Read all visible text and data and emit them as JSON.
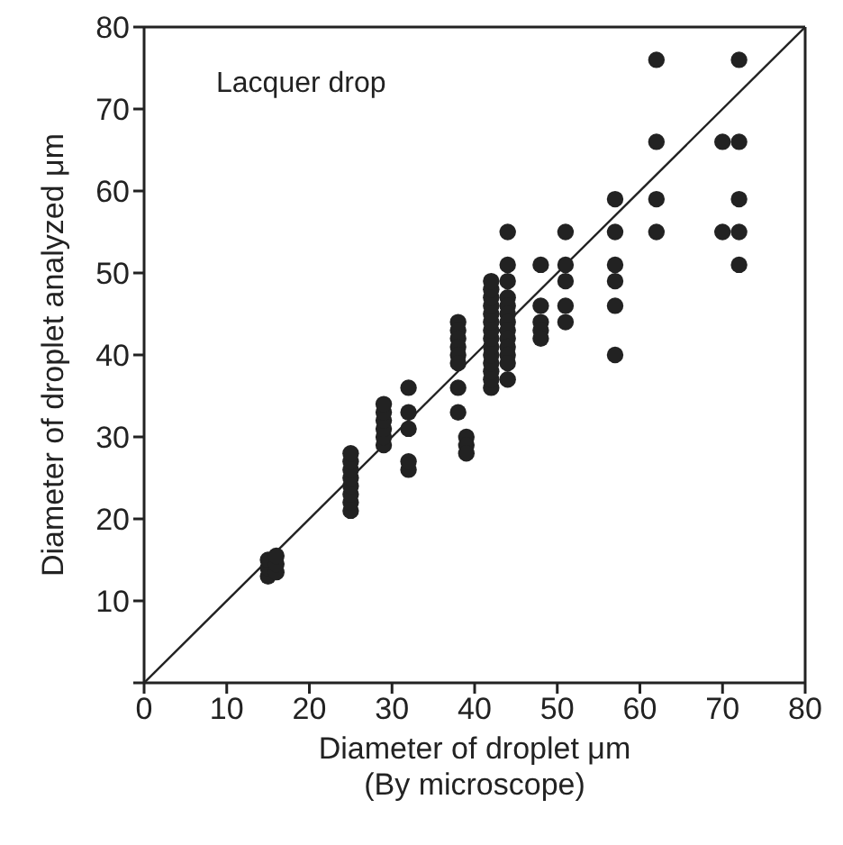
{
  "chart_data": {
    "type": "scatter",
    "xlabel": "Diameter of droplet  μm\n(By microscope)",
    "ylabel": "Diameter of droplet analyzed  μm",
    "annotations": [
      "Lacquer drop"
    ],
    "xlim": [
      0,
      80
    ],
    "ylim": [
      0,
      80
    ],
    "xticks": [
      0,
      10,
      20,
      30,
      40,
      50,
      60,
      70,
      80
    ],
    "yticks": [
      {
        "value": 0,
        "label": null
      },
      10,
      20,
      30,
      40,
      50,
      60,
      70,
      80
    ],
    "marker": "circle",
    "series": [
      {
        "color": "#222222",
        "x": [
          15,
          15,
          15,
          16,
          16,
          16,
          25,
          25,
          25,
          25,
          25,
          25,
          25,
          25,
          29,
          29,
          29,
          29,
          29,
          29,
          32,
          32,
          32,
          32,
          32,
          38,
          38,
          38,
          38,
          38,
          38,
          38,
          38,
          39,
          39,
          39,
          42,
          42,
          42,
          42,
          42,
          42,
          42,
          42,
          42,
          42,
          42,
          42,
          42,
          42,
          44,
          44,
          44,
          44,
          44,
          44,
          44,
          44,
          44,
          44,
          44,
          44,
          44,
          48,
          48,
          48,
          48,
          48,
          51,
          51,
          51,
          51,
          51,
          57,
          57,
          57,
          57,
          57,
          57,
          62,
          62,
          62,
          62,
          70,
          70,
          72,
          72,
          72,
          72,
          72
        ],
        "values": [
          13,
          14,
          15,
          13.5,
          14.5,
          15.5,
          21,
          22,
          23,
          24,
          25,
          26,
          27,
          28,
          29,
          30,
          31,
          32,
          33,
          34,
          26,
          27,
          31,
          33,
          36,
          44,
          43,
          42,
          41,
          40,
          39,
          36,
          33,
          30,
          29,
          28,
          36,
          37,
          38,
          39,
          40,
          41,
          42,
          43,
          44,
          45,
          46,
          47,
          48,
          49,
          55,
          51,
          49,
          47,
          46,
          45,
          44,
          43,
          42,
          41,
          40,
          39,
          37,
          51,
          46,
          44,
          43,
          42,
          55,
          51,
          49,
          46,
          44,
          59,
          55,
          51,
          49,
          46,
          40,
          76,
          66,
          59,
          55,
          66,
          55,
          76,
          66,
          59,
          55,
          51
        ]
      },
      {
        "type": "line",
        "marker": "none",
        "color": "#222222",
        "x": [
          0,
          80
        ],
        "values": [
          0,
          80
        ]
      }
    ]
  }
}
